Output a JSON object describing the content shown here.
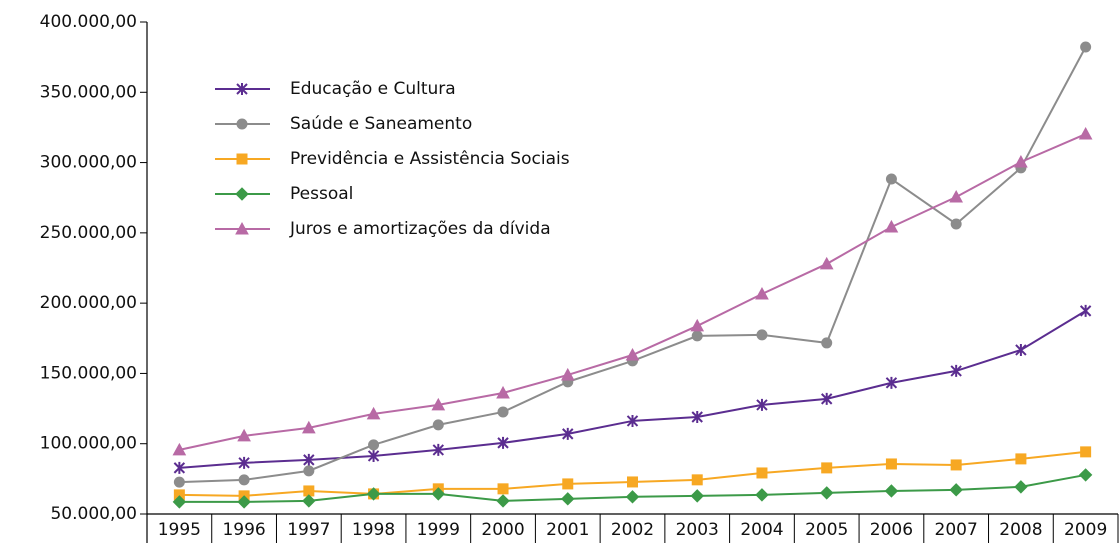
{
  "chart_data": {
    "type": "line",
    "categories": [
      "1995",
      "1996",
      "1997",
      "1998",
      "1999",
      "2000",
      "2001",
      "2002",
      "2003",
      "2004",
      "2005",
      "2006",
      "2007",
      "2008",
      "2009"
    ],
    "series": [
      {
        "name": "Educação e Cultura",
        "color": "#5b2d90",
        "marker": "star",
        "values": [
          82800,
          86400,
          88500,
          91300,
          95600,
          100600,
          107000,
          116200,
          119000,
          127600,
          131900,
          143300,
          151800,
          166700,
          194500
        ]
      },
      {
        "name": "Saúde e Saneamento",
        "color": "#8c8c8c",
        "marker": "circle",
        "values": [
          72700,
          74300,
          80700,
          99200,
          113400,
          122600,
          144000,
          158900,
          176700,
          177400,
          171700,
          288300,
          256300,
          296200,
          382200
        ]
      },
      {
        "name": "Previdência e Assistência Sociais",
        "color": "#f7a823",
        "marker": "square",
        "values": [
          63600,
          62900,
          66400,
          64300,
          67900,
          67900,
          71400,
          72800,
          74300,
          79200,
          82800,
          85600,
          84900,
          89200,
          94200
        ]
      },
      {
        "name": "Pessoal",
        "color": "#3c9a48",
        "marker": "diamond",
        "values": [
          58600,
          58600,
          59300,
          64300,
          64300,
          59300,
          60800,
          62200,
          62900,
          63600,
          65000,
          66400,
          67200,
          69300,
          77800
        ]
      },
      {
        "name": "Juros e amortizações da dívida",
        "color": "#b86aa5",
        "marker": "triangle",
        "values": [
          95600,
          105600,
          111300,
          121200,
          127600,
          136100,
          148900,
          163100,
          183800,
          206500,
          227900,
          254200,
          275500,
          300400,
          320300
        ]
      }
    ],
    "ylim": [
      50000,
      400000
    ],
    "yticks": [
      {
        "value": 50000,
        "label": "50.000,00"
      },
      {
        "value": 100000,
        "label": "100.000,00"
      },
      {
        "value": 150000,
        "label": "150.000,00"
      },
      {
        "value": 200000,
        "label": "200.000,00"
      },
      {
        "value": 250000,
        "label": "250.000,00"
      },
      {
        "value": 300000,
        "label": "300.000,00"
      },
      {
        "value": 350000,
        "label": "350.000,00"
      },
      {
        "value": 400000,
        "label": "400.000,00"
      }
    ],
    "grid": false,
    "legend": "upper left"
  }
}
